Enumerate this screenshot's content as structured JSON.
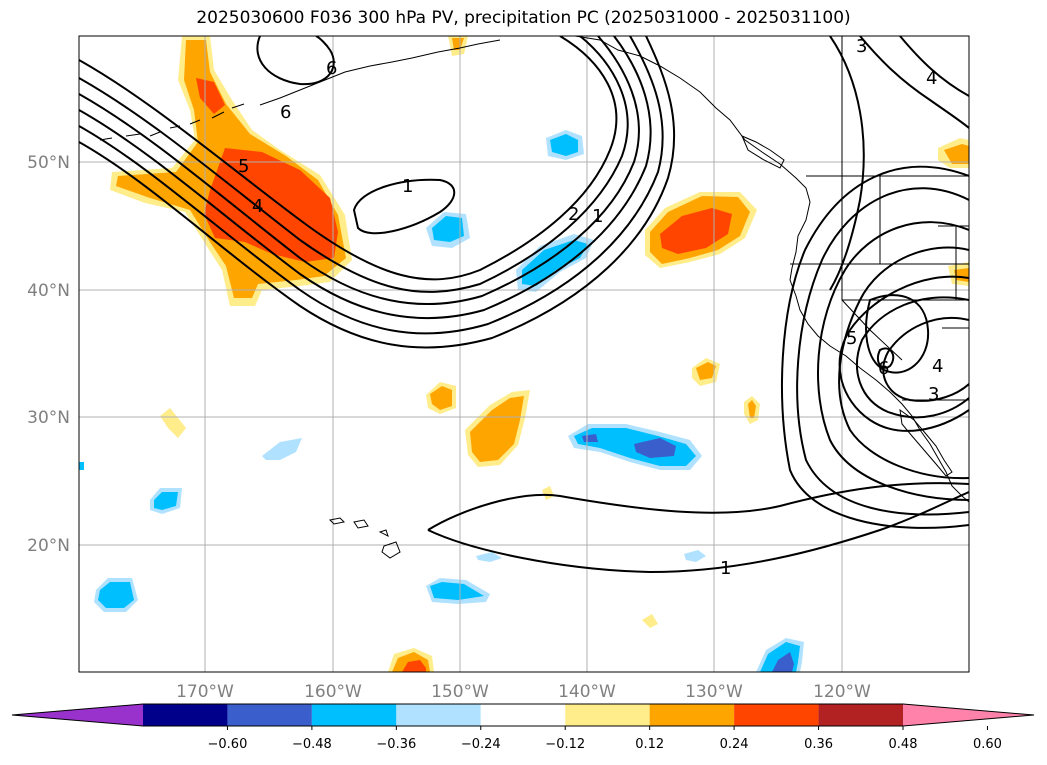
{
  "title": "2025030600 F036 300 hPa PV, precipitation PC (2025031000 - 2025031100)",
  "lat_labels": [
    "50°N",
    "40°N",
    "30°N",
    "20°N"
  ],
  "lon_labels": [
    "170°W",
    "160°W",
    "150°W",
    "140°W",
    "130°W",
    "120°W"
  ],
  "colorbar": {
    "ticks": [
      "−0.60",
      "−0.48",
      "−0.36",
      "−0.24",
      "−0.12",
      "0.12",
      "0.24",
      "0.36",
      "0.48",
      "0.60"
    ],
    "colors": [
      "#9932cc",
      "#00008b",
      "#3a5fcd",
      "#00bfff",
      "#b0e2ff",
      "#ffffff",
      "#ffec8b",
      "#ffa500",
      "#ff4500",
      "#b22222",
      "#ff82ab"
    ]
  },
  "contour_labels": [
    "6",
    "6",
    "5",
    "4",
    "1",
    "2",
    "1",
    "3",
    "4",
    "5",
    "6",
    "4",
    "3",
    "1"
  ],
  "fill_colors": {
    "pos_light": "#ffec8b",
    "pos_mid": "#ffa500",
    "pos_high": "#ff4500",
    "neg_light": "#b0e2ff",
    "neg_mid": "#00bfff",
    "neg_high": "#3a5fcd"
  }
}
